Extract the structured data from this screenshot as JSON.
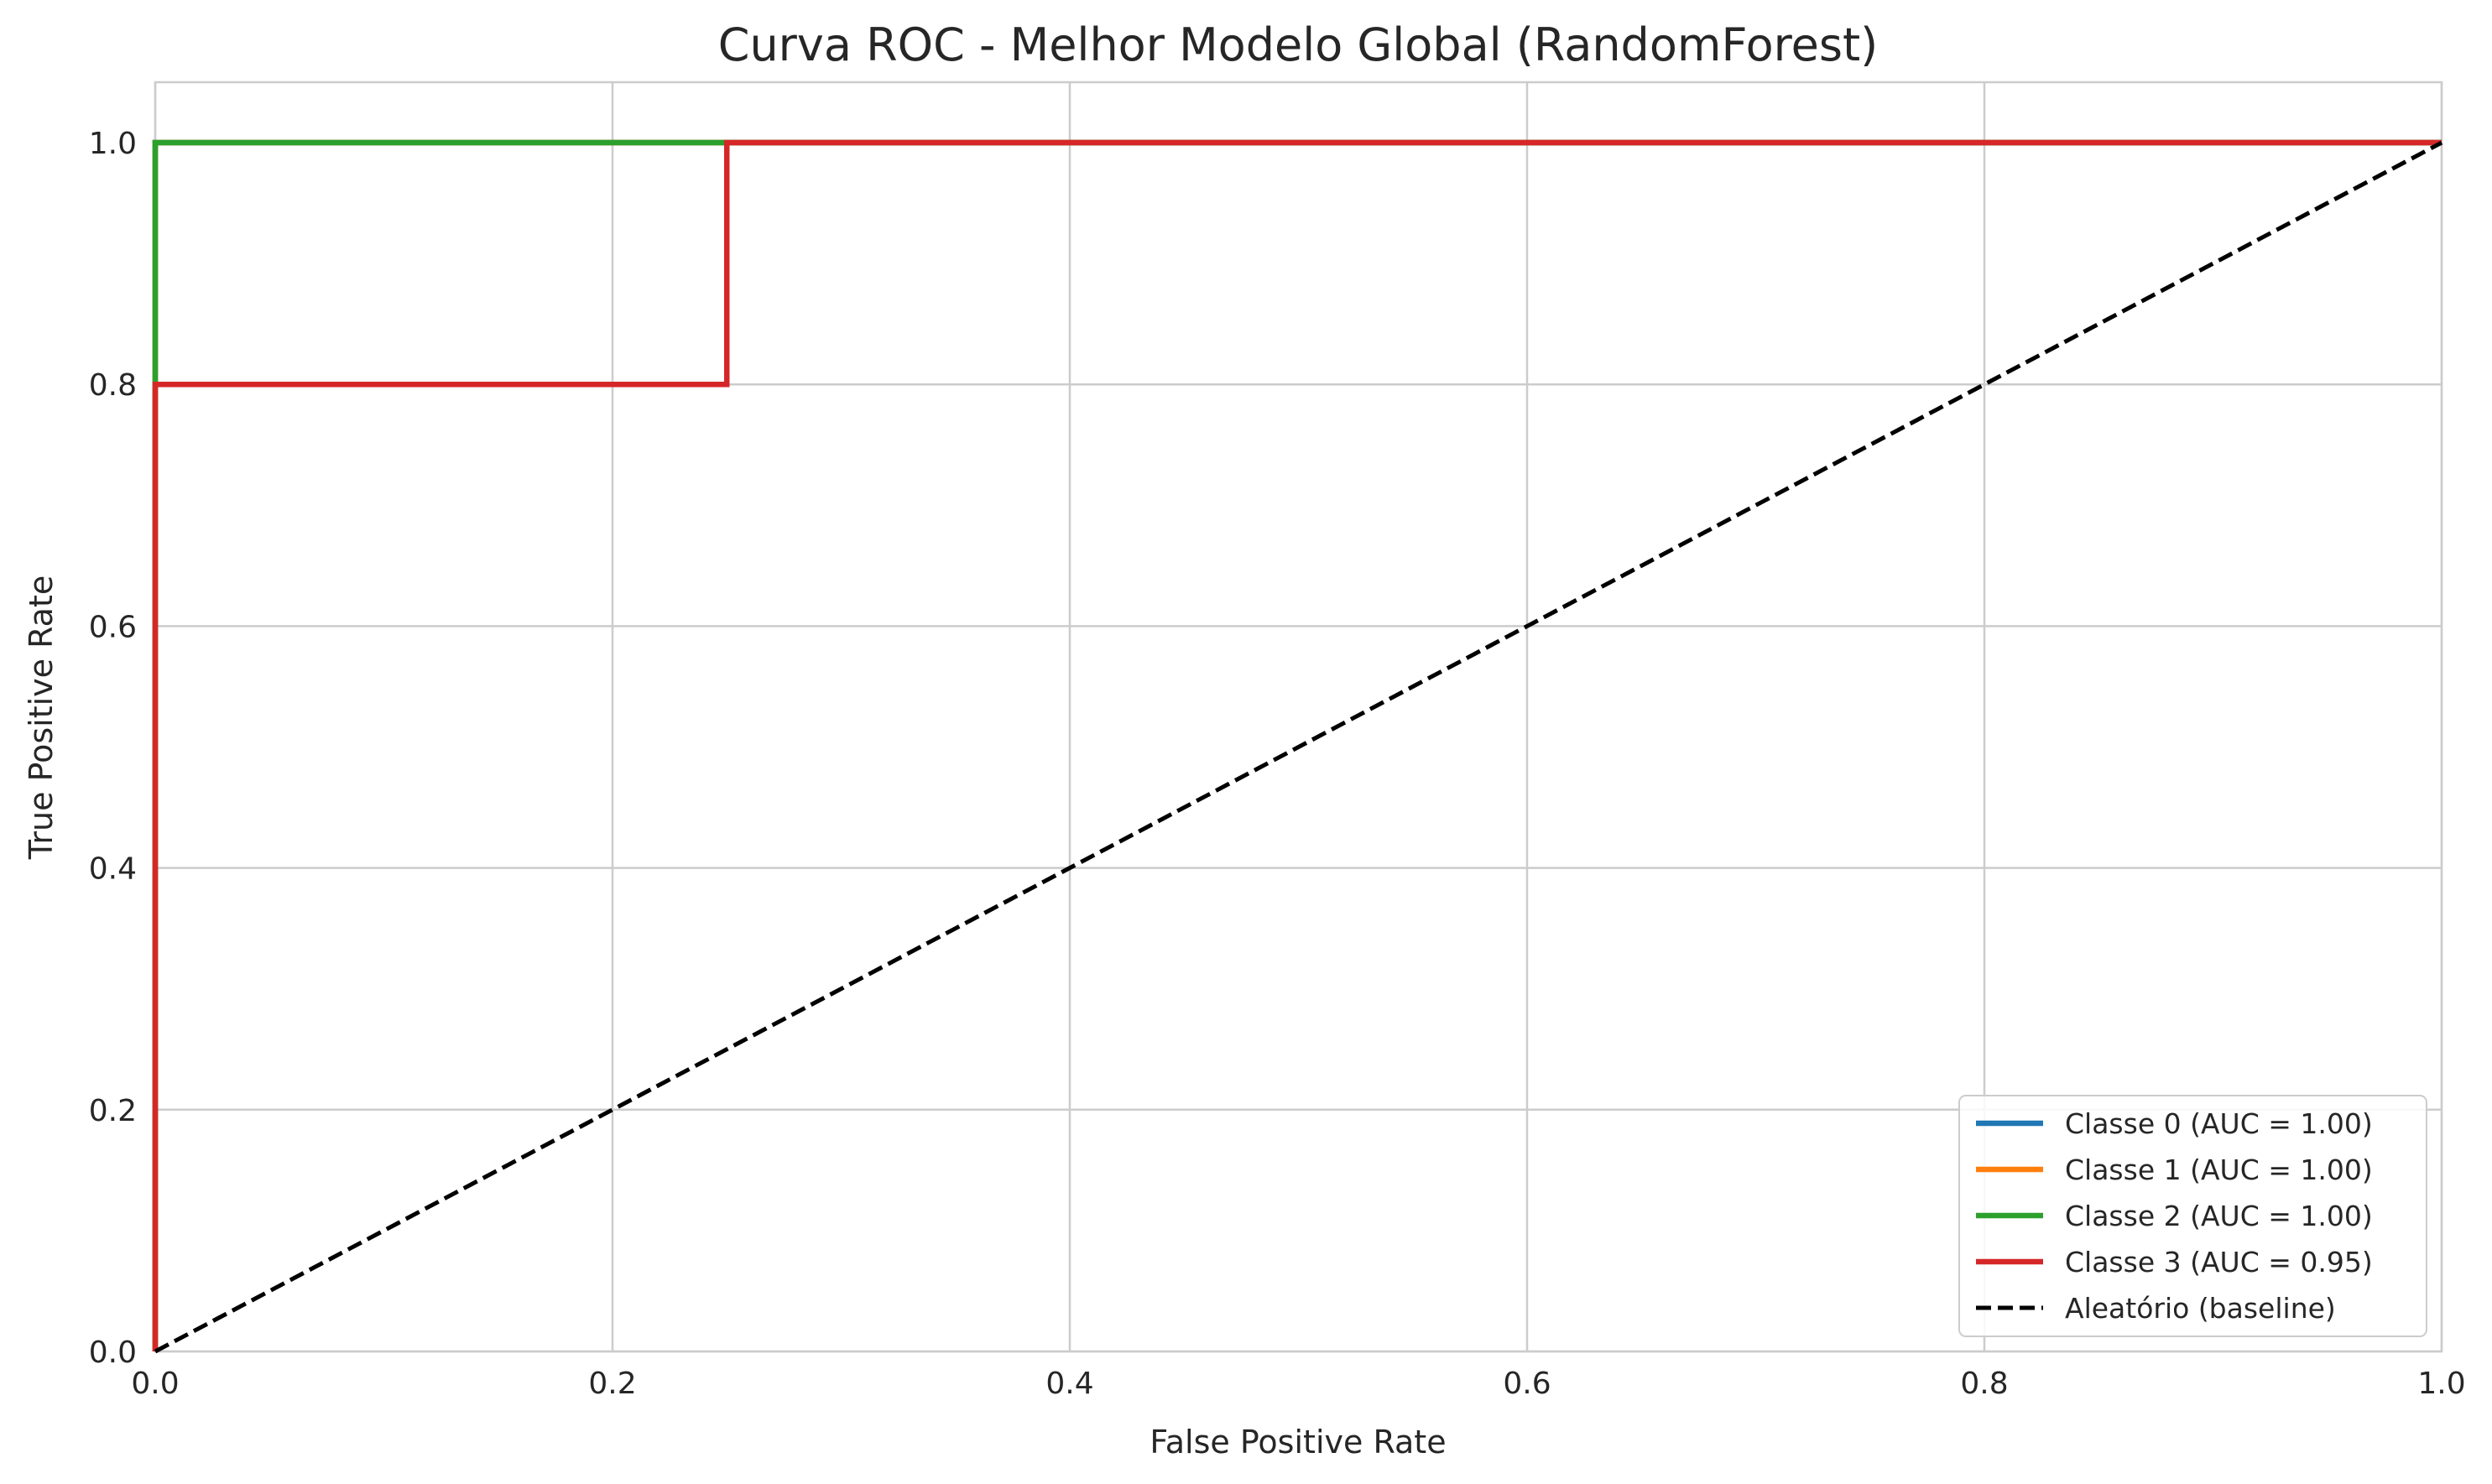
{
  "chart_data": {
    "type": "line",
    "title": "Curva ROC - Melhor Modelo Global (RandomForest)",
    "xlabel": "False Positive Rate",
    "ylabel": "True Positive Rate",
    "xlim": [
      0.0,
      1.0
    ],
    "ylim": [
      0.0,
      1.05
    ],
    "xticks": [
      0.0,
      0.2,
      0.4,
      0.6,
      0.8,
      1.0
    ],
    "yticks": [
      0.0,
      0.2,
      0.4,
      0.6,
      0.8,
      1.0
    ],
    "xtick_labels": [
      "0.0",
      "0.2",
      "0.4",
      "0.6",
      "0.8",
      "1.0"
    ],
    "ytick_labels": [
      "0.0",
      "0.2",
      "0.4",
      "0.6",
      "0.8",
      "1.0"
    ],
    "grid": true,
    "legend_position": "lower-right",
    "series": [
      {
        "name": "Classe 0 (AUC = 1.00)",
        "color": "#1f77b4",
        "style": "solid",
        "x": [
          0.0,
          0.0,
          1.0
        ],
        "y": [
          0.0,
          1.0,
          1.0
        ]
      },
      {
        "name": "Classe 1 (AUC = 1.00)",
        "color": "#ff7f0e",
        "style": "solid",
        "x": [
          0.0,
          0.0,
          1.0
        ],
        "y": [
          0.0,
          1.0,
          1.0
        ]
      },
      {
        "name": "Classe 2 (AUC = 1.00)",
        "color": "#2ca02c",
        "style": "solid",
        "x": [
          0.0,
          0.0,
          1.0
        ],
        "y": [
          0.0,
          1.0,
          1.0
        ]
      },
      {
        "name": "Classe 3 (AUC = 0.95)",
        "color": "#d62728",
        "style": "solid",
        "x": [
          0.0,
          0.0,
          0.25,
          0.25,
          1.0
        ],
        "y": [
          0.0,
          0.8,
          0.8,
          1.0,
          1.0
        ]
      },
      {
        "name": "Aleatório (baseline)",
        "color": "#000000",
        "style": "dashed",
        "x": [
          0.0,
          1.0
        ],
        "y": [
          0.0,
          1.0
        ]
      }
    ]
  }
}
